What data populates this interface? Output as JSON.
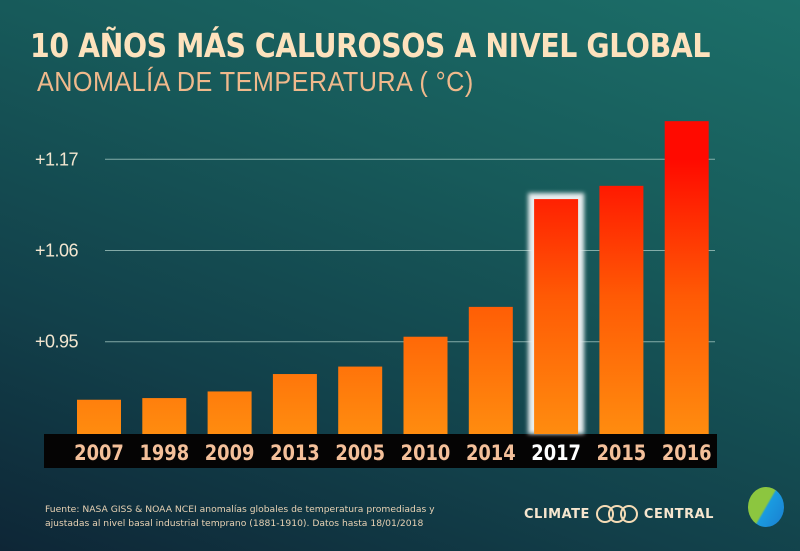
{
  "header": {
    "title": "10 AÑOS MÁS CALUROSOS A NIVEL GLOBAL",
    "subtitle": "ANOMALÍA DE TEMPERATURA ( °C)"
  },
  "chart_data": {
    "type": "bar",
    "title": "10 AÑOS MÁS CALUROSOS A NIVEL GLOBAL",
    "subtitle": "ANOMALÍA DE TEMPERATURA ( °C)",
    "xlabel": "",
    "ylabel": "Anomalía de temperatura (°C)",
    "categories": [
      "2007",
      "1998",
      "2009",
      "2013",
      "2005",
      "2010",
      "2014",
      "2017",
      "2015",
      "2016"
    ],
    "values": [
      0.88,
      0.882,
      0.89,
      0.911,
      0.92,
      0.956,
      0.992,
      1.122,
      1.138,
      1.216
    ],
    "highlighted": "2017",
    "yticks": [
      {
        "value": 0.95,
        "label": "+0.95"
      },
      {
        "value": 1.06,
        "label": "+1.06"
      },
      {
        "value": 1.17,
        "label": "+1.17"
      }
    ],
    "grid": true,
    "legend": "none",
    "colors": {
      "low": "#ff8a10",
      "high": "#ff0a00",
      "highlight_border": "#e8eef0"
    }
  },
  "footer": {
    "source_line1": "Fuente: NASA GISS & NOAA NCEI anomalías globales de temperatura promediadas y",
    "source_line2": "ajustadas al nivel basal industrial temprano (1881-1910). Datos hasta 18/01/2018",
    "logo_left": "CLIMATE",
    "logo_right": "CENTRAL"
  }
}
